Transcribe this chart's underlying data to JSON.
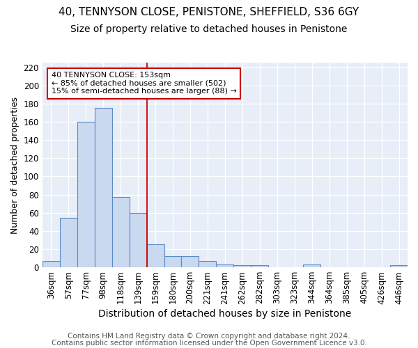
{
  "title1": "40, TENNYSON CLOSE, PENISTONE, SHEFFIELD, S36 6GY",
  "title2": "Size of property relative to detached houses in Penistone",
  "xlabel": "Distribution of detached houses by size in Penistone",
  "ylabel": "Number of detached properties",
  "categories": [
    "36sqm",
    "57sqm",
    "77sqm",
    "98sqm",
    "118sqm",
    "139sqm",
    "159sqm",
    "180sqm",
    "200sqm",
    "221sqm",
    "241sqm",
    "262sqm",
    "282sqm",
    "303sqm",
    "323sqm",
    "344sqm",
    "364sqm",
    "385sqm",
    "405sqm",
    "426sqm",
    "446sqm"
  ],
  "values": [
    7,
    54,
    160,
    175,
    77,
    60,
    25,
    12,
    12,
    7,
    3,
    2,
    2,
    0,
    0,
    3,
    0,
    0,
    0,
    0,
    2
  ],
  "bar_color": "#c9d9f0",
  "bar_edge_color": "#5b8ac5",
  "vline_color": "#cc0000",
  "vline_pos": 6,
  "annotation_text": "40 TENNYSON CLOSE: 153sqm\n← 85% of detached houses are smaller (502)\n15% of semi-detached houses are larger (88) →",
  "annotation_box_color": "white",
  "annotation_box_edge": "#cc0000",
  "ylim": [
    0,
    225
  ],
  "yticks": [
    0,
    20,
    40,
    60,
    80,
    100,
    120,
    140,
    160,
    180,
    200,
    220
  ],
  "fig_bg_color": "#ffffff",
  "plot_bg_color": "#e8eef8",
  "grid_color": "#ffffff",
  "title1_fontsize": 11,
  "title2_fontsize": 10,
  "xlabel_fontsize": 10,
  "ylabel_fontsize": 9,
  "tick_fontsize": 8.5,
  "footer_fontsize": 7.5,
  "footer1": "Contains HM Land Registry data © Crown copyright and database right 2024.",
  "footer2": "Contains public sector information licensed under the Open Government Licence v3.0."
}
